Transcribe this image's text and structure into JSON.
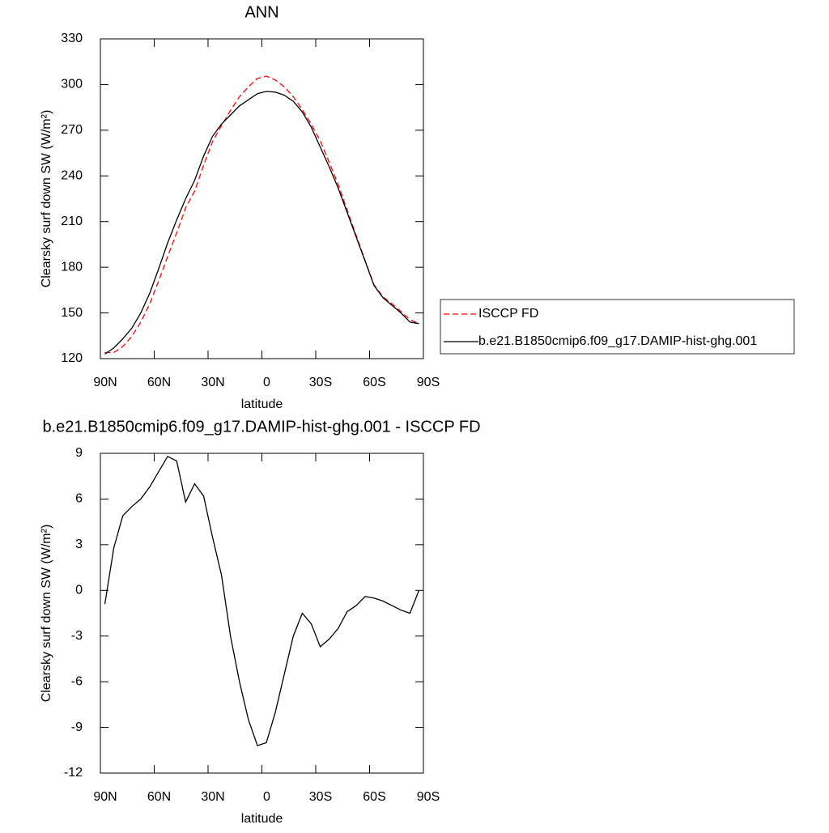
{
  "chart_data": [
    {
      "type": "line",
      "title": "ANN",
      "xlabel": "latitude",
      "ylabel": "Clearsky surf down SW (W/m²)",
      "x": [
        87.5,
        82.5,
        77.5,
        72.5,
        67.5,
        62.5,
        57.5,
        52.5,
        47.5,
        42.5,
        37.5,
        32.5,
        27.5,
        22.5,
        17.5,
        12.5,
        7.5,
        2.5,
        -2.5,
        -7.5,
        -12.5,
        -17.5,
        -22.5,
        -27.5,
        -32.5,
        -37.5,
        -42.5,
        -47.5,
        -52.5,
        -57.5,
        -62.5,
        -67.5,
        -72.5,
        -77.5,
        -82.5,
        -87.5
      ],
      "xlim": [
        90,
        -90
      ],
      "xticks": [
        {
          "value": 90,
          "label": "90N"
        },
        {
          "value": 60,
          "label": "60N"
        },
        {
          "value": 30,
          "label": "30N"
        },
        0,
        {
          "value": -30,
          "label": "30S"
        },
        {
          "value": -60,
          "label": "60S"
        },
        {
          "value": -90,
          "label": "90S"
        }
      ],
      "ylim": [
        120,
        330
      ],
      "yticks": [
        120,
        150,
        180,
        210,
        240,
        270,
        300,
        330
      ],
      "legend": "right",
      "series": [
        {
          "name": "ISCCP FD",
          "color": "#ff0000",
          "line_style": "dashed",
          "values": [
            124,
            124,
            128,
            134.5,
            144,
            156,
            171,
            187,
            202.5,
            219,
            230,
            247,
            262.5,
            273,
            283,
            292,
            298.5,
            304,
            305.5,
            303,
            298.5,
            292,
            283.5,
            274,
            263,
            249,
            234.5,
            217.5,
            201,
            184.5,
            168.5,
            160.5,
            156,
            151,
            145.5,
            143
          ]
        },
        {
          "name": "b.e21.B1850cmip6.f09_g17.DAMIP-hist-ghg.001",
          "color": "#000000",
          "line_style": "solid",
          "values": [
            123,
            127,
            133,
            140,
            150,
            163,
            179,
            196,
            211,
            225,
            237,
            253,
            266,
            274,
            280,
            286,
            290,
            294,
            295.5,
            295,
            293,
            289,
            282,
            272,
            259,
            246,
            232,
            216,
            200,
            184,
            168,
            160,
            155,
            150,
            144,
            143
          ]
        }
      ]
    },
    {
      "type": "line",
      "title": "b.e21.B1850cmip6.f09_g17.DAMIP-hist-ghg.001 - ISCCP FD",
      "xlabel": "latitude",
      "ylabel": "Clearsky surf down SW (W/m²)",
      "x": [
        87.5,
        82.5,
        77.5,
        72.5,
        67.5,
        62.5,
        57.5,
        52.5,
        47.5,
        42.5,
        37.5,
        32.5,
        27.5,
        22.5,
        17.5,
        12.5,
        7.5,
        2.5,
        -2.5,
        -7.5,
        -12.5,
        -17.5,
        -22.5,
        -27.5,
        -32.5,
        -37.5,
        -42.5,
        -47.5,
        -52.5,
        -57.5,
        -62.5,
        -67.5,
        -72.5,
        -77.5,
        -82.5,
        -87.5
      ],
      "xlim": [
        90,
        -90
      ],
      "xticks": [
        {
          "value": 90,
          "label": "90N"
        },
        {
          "value": 60,
          "label": "60N"
        },
        {
          "value": 30,
          "label": "30N"
        },
        0,
        {
          "value": -30,
          "label": "30S"
        },
        {
          "value": -60,
          "label": "60S"
        },
        {
          "value": -90,
          "label": "90S"
        }
      ],
      "ylim": [
        -12,
        9
      ],
      "yticks": [
        -12,
        -9,
        -6,
        -3,
        0,
        3,
        6,
        9
      ],
      "series": [
        {
          "color": "#000000",
          "line_style": "solid",
          "values": [
            -0.9,
            2.8,
            4.9,
            5.5,
            6.0,
            6.8,
            7.8,
            8.8,
            8.5,
            5.8,
            7.0,
            6.2,
            3.5,
            1.0,
            -3.0,
            -6.0,
            -8.5,
            -10.2,
            -10.0,
            -8.0,
            -5.5,
            -3.0,
            -1.5,
            -2.2,
            -3.7,
            -3.2,
            -2.5,
            -1.4,
            -1.0,
            -0.4,
            -0.5,
            -0.7,
            -1.0,
            -1.3,
            -1.5,
            0.0
          ]
        }
      ]
    }
  ]
}
